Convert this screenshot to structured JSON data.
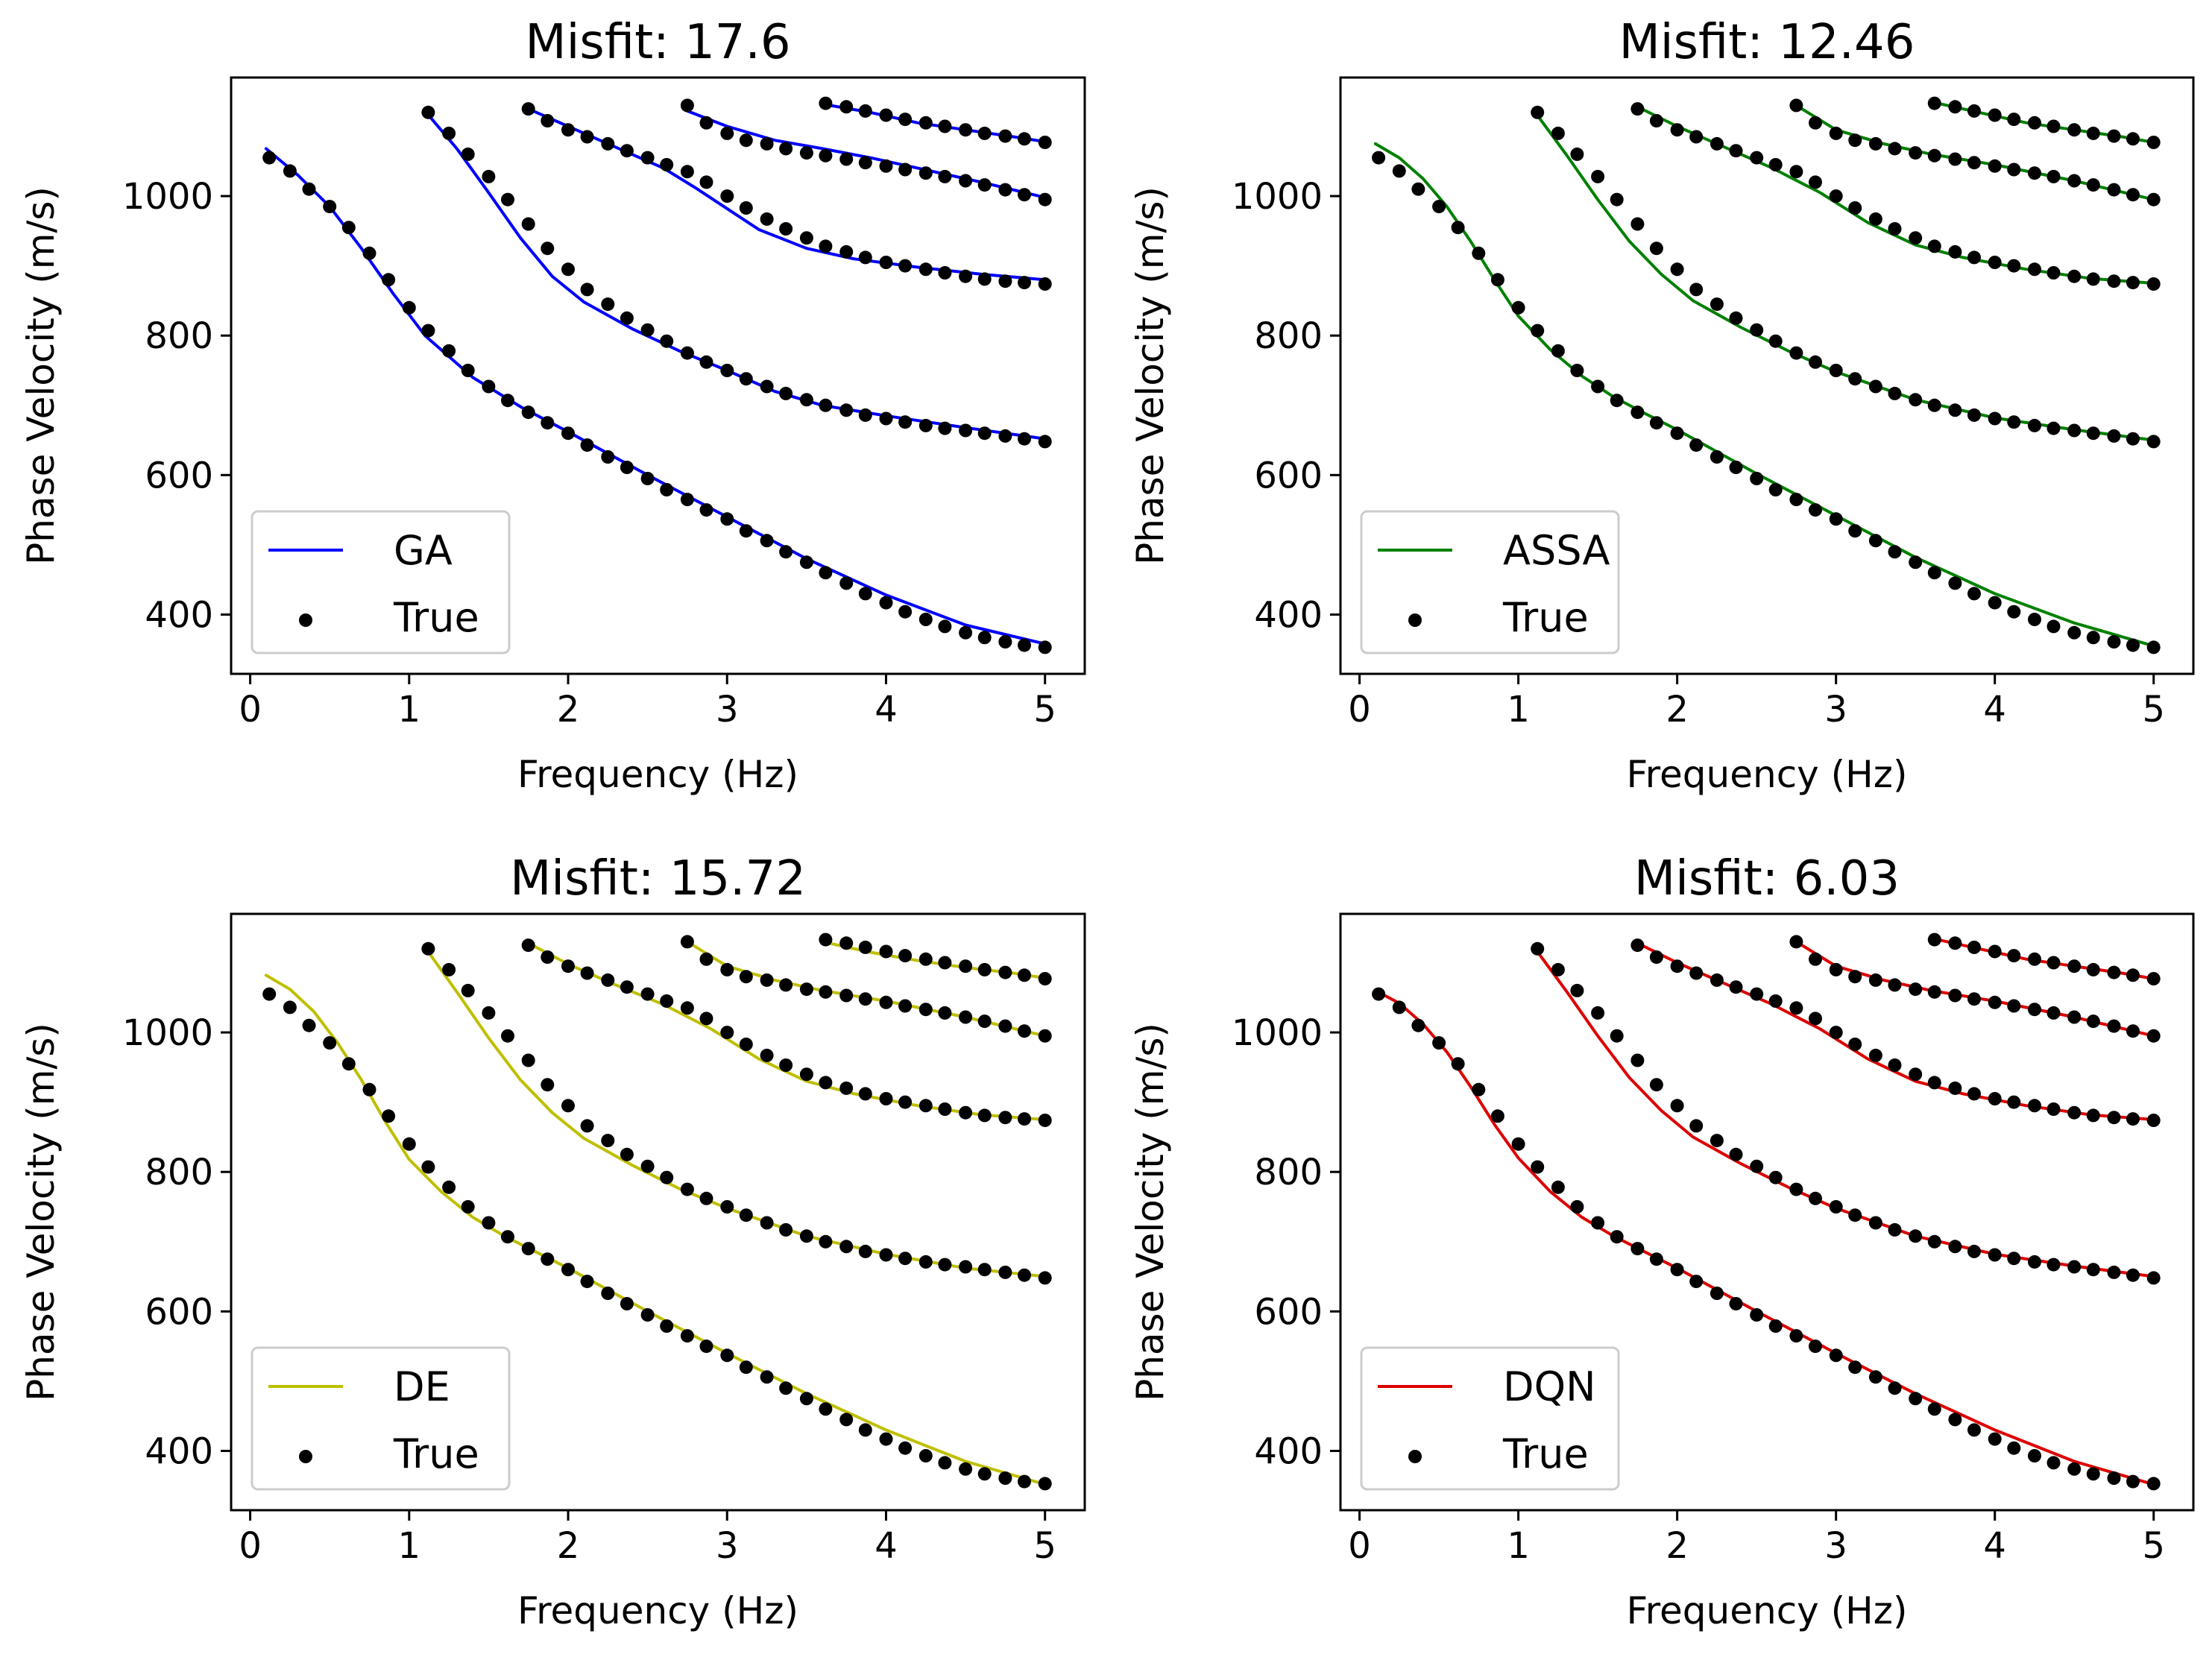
{
  "chart_data": [
    {
      "type": "line",
      "title": "Misfit: 17.6",
      "xlabel": "Frequency (Hz)",
      "ylabel": "Phase Velocity (m/s)",
      "xlim": [
        -0.12,
        5.25
      ],
      "ylim": [
        315,
        1170
      ],
      "xticks": [
        "0",
        "1",
        "2",
        "3",
        "4",
        "5"
      ],
      "yticks": [
        "400",
        "600",
        "800",
        "1000"
      ],
      "legend_position": "lower-left",
      "model": {
        "name": "GA",
        "color": "#0000ff"
      },
      "true_label": "True",
      "model_series": [
        {
          "x": [
            0.1,
            0.3,
            0.5,
            0.7,
            0.9,
            1.1,
            1.4,
            1.7,
            2.0,
            2.5,
            3.0,
            3.5,
            4.0,
            4.5,
            5.0
          ],
          "y": [
            1068,
            1030,
            985,
            925,
            860,
            800,
            740,
            698,
            662,
            600,
            540,
            480,
            428,
            385,
            358
          ]
        },
        {
          "x": [
            1.1,
            1.3,
            1.5,
            1.7,
            1.9,
            2.1,
            2.4,
            2.7,
            3.0,
            3.3,
            3.6,
            4.0,
            4.5,
            5.0
          ],
          "y": [
            1122,
            1068,
            1005,
            940,
            885,
            848,
            810,
            778,
            750,
            720,
            700,
            685,
            668,
            652
          ]
        },
        {
          "x": [
            1.75,
            2.0,
            2.3,
            2.6,
            2.8,
            3.0,
            3.2,
            3.5,
            3.8,
            4.2,
            4.6,
            5.0
          ],
          "y": [
            1125,
            1100,
            1070,
            1040,
            1012,
            982,
            952,
            925,
            910,
            898,
            888,
            880
          ]
        },
        {
          "x": [
            2.75,
            3.0,
            3.3,
            3.6,
            3.9,
            4.2,
            4.6,
            5.0
          ],
          "y": [
            1122,
            1100,
            1080,
            1068,
            1055,
            1040,
            1020,
            998
          ]
        },
        {
          "x": [
            3.6,
            3.9,
            4.2,
            4.5,
            4.8,
            5.0
          ],
          "y": [
            1132,
            1120,
            1105,
            1095,
            1085,
            1078
          ]
        }
      ]
    },
    {
      "type": "line",
      "title": "Misfit: 12.46",
      "xlabel": "Frequency (Hz)",
      "ylabel": "Phase Velocity (m/s)",
      "xlim": [
        -0.12,
        5.25
      ],
      "ylim": [
        315,
        1170
      ],
      "xticks": [
        "0",
        "1",
        "2",
        "3",
        "4",
        "5"
      ],
      "yticks": [
        "400",
        "600",
        "800",
        "1000"
      ],
      "legend_position": "lower-left",
      "model": {
        "name": "ASSA",
        "color": "#008000"
      },
      "true_label": "True",
      "model_series": [
        {
          "x": [
            0.1,
            0.25,
            0.4,
            0.55,
            0.7,
            0.85,
            1.0,
            1.2,
            1.4,
            1.6,
            1.8,
            2.0,
            2.5,
            3.0,
            3.5,
            4.0,
            4.5,
            5.0
          ],
          "y": [
            1075,
            1055,
            1025,
            985,
            935,
            880,
            828,
            780,
            742,
            712,
            688,
            665,
            602,
            542,
            482,
            430,
            388,
            355
          ]
        },
        {
          "x": [
            1.1,
            1.3,
            1.5,
            1.7,
            1.9,
            2.1,
            2.4,
            2.7,
            3.0,
            3.5,
            4.0,
            4.5,
            5.0
          ],
          "y": [
            1122,
            1060,
            995,
            935,
            888,
            850,
            812,
            778,
            748,
            708,
            682,
            665,
            650
          ]
        },
        {
          "x": [
            1.75,
            2.0,
            2.3,
            2.6,
            2.9,
            3.2,
            3.5,
            3.8,
            4.2,
            4.6,
            5.0
          ],
          "y": [
            1128,
            1100,
            1070,
            1040,
            1005,
            962,
            930,
            912,
            895,
            882,
            875
          ]
        },
        {
          "x": [
            2.75,
            3.0,
            3.3,
            3.6,
            4.0,
            4.5,
            5.0
          ],
          "y": [
            1130,
            1095,
            1075,
            1060,
            1045,
            1022,
            995
          ]
        },
        {
          "x": [
            3.6,
            3.9,
            4.2,
            4.5,
            4.8,
            5.0
          ],
          "y": [
            1135,
            1120,
            1105,
            1095,
            1085,
            1077
          ]
        }
      ]
    },
    {
      "type": "line",
      "title": "Misfit: 15.72",
      "xlabel": "Frequency (Hz)",
      "ylabel": "Phase Velocity (m/s)",
      "xlim": [
        -0.12,
        5.25
      ],
      "ylim": [
        315,
        1170
      ],
      "xticks": [
        "0",
        "1",
        "2",
        "3",
        "4",
        "5"
      ],
      "yticks": [
        "400",
        "600",
        "800",
        "1000"
      ],
      "legend_position": "lower-left",
      "model": {
        "name": "DE",
        "color": "#bfbf00"
      },
      "true_label": "True",
      "model_series": [
        {
          "x": [
            0.1,
            0.25,
            0.4,
            0.55,
            0.7,
            0.85,
            1.0,
            1.2,
            1.4,
            1.6,
            1.8,
            2.0,
            2.5,
            3.0,
            3.5,
            4.0,
            4.5,
            5.0
          ],
          "y": [
            1082,
            1062,
            1030,
            985,
            932,
            872,
            818,
            772,
            735,
            708,
            685,
            662,
            600,
            540,
            482,
            430,
            385,
            352
          ]
        },
        {
          "x": [
            1.1,
            1.3,
            1.5,
            1.7,
            1.9,
            2.1,
            2.4,
            2.7,
            3.0,
            3.5,
            4.0,
            4.5,
            5.0
          ],
          "y": [
            1122,
            1058,
            992,
            932,
            885,
            848,
            810,
            776,
            748,
            708,
            682,
            662,
            650
          ]
        },
        {
          "x": [
            1.75,
            2.0,
            2.3,
            2.6,
            2.9,
            3.2,
            3.5,
            3.8,
            4.2,
            4.6,
            5.0
          ],
          "y": [
            1128,
            1098,
            1068,
            1040,
            1005,
            962,
            930,
            912,
            895,
            882,
            875
          ]
        },
        {
          "x": [
            2.75,
            3.0,
            3.3,
            3.6,
            4.0,
            4.5,
            5.0
          ],
          "y": [
            1130,
            1095,
            1075,
            1060,
            1045,
            1022,
            995
          ]
        },
        {
          "x": [
            3.6,
            3.9,
            4.2,
            4.5,
            4.8,
            5.0
          ],
          "y": [
            1130,
            1115,
            1103,
            1093,
            1085,
            1078
          ]
        }
      ]
    },
    {
      "type": "line",
      "title": "Misfit: 6.03",
      "xlabel": "Frequency (Hz)",
      "ylabel": "Phase Velocity (m/s)",
      "xlim": [
        -0.12,
        5.25
      ],
      "ylim": [
        315,
        1170
      ],
      "xticks": [
        "0",
        "1",
        "2",
        "3",
        "4",
        "5"
      ],
      "yticks": [
        "400",
        "600",
        "800",
        "1000"
      ],
      "legend_position": "lower-left",
      "model": {
        "name": "DQN",
        "color": "#dd0000"
      },
      "true_label": "True",
      "model_series": [
        {
          "x": [
            0.1,
            0.25,
            0.4,
            0.55,
            0.7,
            0.85,
            1.0,
            1.2,
            1.4,
            1.6,
            1.8,
            2.0,
            2.5,
            3.0,
            3.5,
            4.0,
            4.5,
            5.0
          ],
          "y": [
            1060,
            1042,
            1012,
            972,
            922,
            868,
            820,
            772,
            735,
            708,
            685,
            662,
            600,
            540,
            482,
            430,
            385,
            352
          ]
        },
        {
          "x": [
            1.1,
            1.3,
            1.5,
            1.7,
            1.9,
            2.1,
            2.4,
            2.7,
            3.0,
            3.5,
            4.0,
            4.5,
            5.0
          ],
          "y": [
            1122,
            1060,
            995,
            935,
            888,
            850,
            812,
            778,
            748,
            708,
            682,
            665,
            650
          ]
        },
        {
          "x": [
            1.75,
            2.0,
            2.3,
            2.6,
            2.9,
            3.2,
            3.5,
            3.8,
            4.2,
            4.6,
            5.0
          ],
          "y": [
            1128,
            1100,
            1070,
            1040,
            1005,
            962,
            930,
            912,
            895,
            882,
            875
          ]
        },
        {
          "x": [
            2.75,
            3.0,
            3.3,
            3.6,
            4.0,
            4.5,
            5.0
          ],
          "y": [
            1130,
            1095,
            1075,
            1060,
            1045,
            1022,
            995
          ]
        },
        {
          "x": [
            3.6,
            3.9,
            4.2,
            4.5,
            4.8,
            5.0
          ],
          "y": [
            1135,
            1120,
            1105,
            1095,
            1085,
            1077
          ]
        }
      ]
    }
  ],
  "true_points": {
    "color": "#000000",
    "modes": [
      {
        "x": [
          0.12,
          0.25,
          0.37,
          0.5,
          0.62,
          0.75,
          0.87,
          1.0,
          1.12,
          1.25,
          1.37,
          1.5,
          1.62,
          1.75,
          1.87,
          2.0,
          2.12,
          2.25,
          2.37,
          2.5,
          2.62,
          2.75,
          2.87,
          3.0,
          3.12,
          3.25,
          3.37,
          3.5,
          3.62,
          3.75,
          3.87,
          4.0,
          4.12,
          4.25,
          4.37,
          4.5,
          4.62,
          4.75,
          4.87,
          5.0
        ],
        "y": [
          1055,
          1036,
          1010,
          985,
          955,
          918,
          880,
          840,
          807,
          778,
          750,
          727,
          707,
          690,
          675,
          660,
          643,
          626,
          611,
          595,
          579,
          565,
          550,
          537,
          520,
          506,
          490,
          475,
          460,
          445,
          430,
          417,
          404,
          393,
          383,
          374,
          367,
          361,
          356,
          353
        ]
      },
      {
        "x": [
          1.12,
          1.25,
          1.37,
          1.5,
          1.62,
          1.75,
          1.87,
          2.0,
          2.12,
          2.25,
          2.37,
          2.5,
          2.62,
          2.75,
          2.87,
          3.0,
          3.12,
          3.25,
          3.37,
          3.5,
          3.62,
          3.75,
          3.87,
          4.0,
          4.12,
          4.25,
          4.37,
          4.5,
          4.62,
          4.75,
          4.87,
          5.0
        ],
        "y": [
          1120,
          1090,
          1060,
          1028,
          995,
          960,
          925,
          895,
          866,
          845,
          825,
          808,
          792,
          775,
          762,
          750,
          738,
          727,
          717,
          708,
          700,
          693,
          686,
          681,
          676,
          671,
          667,
          664,
          660,
          656,
          652,
          648
        ]
      },
      {
        "x": [
          1.75,
          1.87,
          2.0,
          2.12,
          2.25,
          2.37,
          2.5,
          2.62,
          2.75,
          2.87,
          3.0,
          3.12,
          3.25,
          3.37,
          3.5,
          3.62,
          3.75,
          3.87,
          4.0,
          4.12,
          4.25,
          4.37,
          4.5,
          4.62,
          4.75,
          4.87,
          5.0
        ],
        "y": [
          1125,
          1108,
          1095,
          1085,
          1075,
          1065,
          1055,
          1045,
          1035,
          1020,
          1000,
          983,
          967,
          953,
          940,
          928,
          920,
          912,
          905,
          900,
          895,
          890,
          885,
          881,
          878,
          876,
          874
        ]
      },
      {
        "x": [
          2.75,
          2.87,
          3.0,
          3.12,
          3.25,
          3.37,
          3.5,
          3.62,
          3.75,
          3.87,
          4.0,
          4.12,
          4.25,
          4.37,
          4.5,
          4.62,
          4.75,
          4.87,
          5.0
        ],
        "y": [
          1130,
          1105,
          1090,
          1080,
          1075,
          1068,
          1062,
          1058,
          1053,
          1048,
          1043,
          1038,
          1033,
          1028,
          1022,
          1016,
          1009,
          1002,
          995
        ]
      },
      {
        "x": [
          3.62,
          3.75,
          3.87,
          4.0,
          4.12,
          4.25,
          4.37,
          4.5,
          4.62,
          4.75,
          4.87,
          5.0
        ],
        "y": [
          1133,
          1128,
          1122,
          1116,
          1110,
          1105,
          1100,
          1095,
          1090,
          1086,
          1082,
          1077
        ]
      }
    ]
  }
}
